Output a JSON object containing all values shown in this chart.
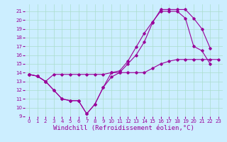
{
  "xlabel": "Windchill (Refroidissement éolien,°C)",
  "background_color": "#cceeff",
  "grid_color": "#aaddcc",
  "line_color": "#990099",
  "xlim": [
    -0.5,
    23.5
  ],
  "ylim": [
    9,
    21.8
  ],
  "xticks": [
    0,
    1,
    2,
    3,
    4,
    5,
    6,
    7,
    8,
    9,
    10,
    11,
    12,
    13,
    14,
    15,
    16,
    17,
    18,
    19,
    20,
    21,
    22,
    23
  ],
  "yticks": [
    9,
    10,
    11,
    12,
    13,
    14,
    15,
    16,
    17,
    18,
    19,
    20,
    21
  ],
  "line1_x": [
    0,
    1,
    2,
    3,
    4,
    5,
    6,
    7,
    8,
    9,
    10,
    11,
    12,
    13,
    14,
    15,
    16,
    17,
    18,
    19,
    20,
    21,
    22,
    23
  ],
  "line1_y": [
    13.8,
    13.6,
    13.0,
    13.8,
    13.8,
    13.8,
    13.8,
    13.8,
    13.8,
    13.8,
    14.0,
    14.0,
    14.0,
    14.0,
    14.0,
    14.5,
    15.0,
    15.3,
    15.5,
    15.5,
    15.5,
    15.5,
    15.5,
    15.5
  ],
  "line2_x": [
    0,
    1,
    2,
    3,
    4,
    5,
    6,
    7,
    8,
    9,
    10,
    11,
    12,
    13,
    14,
    15,
    16,
    17,
    18,
    19,
    20,
    21,
    22
  ],
  "line2_y": [
    13.8,
    13.6,
    13.0,
    12.0,
    11.0,
    10.8,
    10.8,
    9.3,
    10.4,
    12.3,
    14.0,
    14.2,
    15.3,
    16.9,
    18.5,
    19.8,
    21.0,
    21.0,
    21.0,
    20.2,
    17.0,
    16.5,
    15.0
  ],
  "line3_x": [
    0,
    1,
    2,
    3,
    4,
    5,
    6,
    7,
    8,
    9,
    10,
    11,
    12,
    13,
    14,
    15,
    16,
    17,
    18,
    19,
    20,
    21,
    22
  ],
  "line3_y": [
    13.8,
    13.6,
    13.0,
    12.0,
    11.0,
    10.8,
    10.8,
    9.3,
    10.4,
    12.3,
    13.5,
    14.0,
    15.0,
    16.0,
    17.5,
    19.7,
    21.2,
    21.2,
    21.2,
    21.2,
    20.2,
    19.0,
    16.8
  ],
  "tick_fontsize": 5,
  "xlabel_fontsize": 6.5,
  "marker_size": 1.8,
  "lw": 0.8
}
